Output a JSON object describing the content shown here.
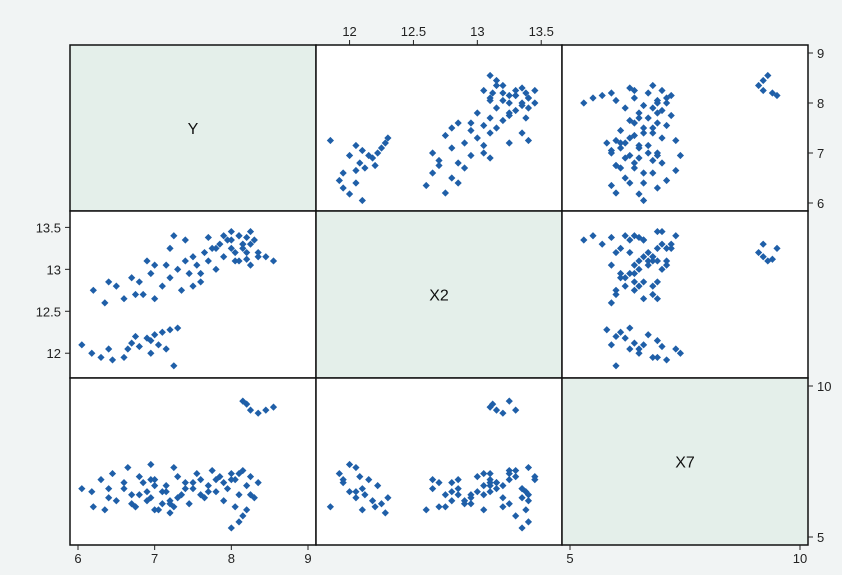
{
  "chart_data": {
    "type": "scatter",
    "variables": [
      "Y",
      "X2",
      "X7"
    ],
    "diagonal_labels": [
      "Y",
      "X2",
      "X7"
    ],
    "colors": {
      "marker": "#1f5fa8",
      "diagonal_fill": "#e4efea",
      "panel_bg": "#ffffff",
      "page_bg": "#f1f4f4"
    },
    "axes": {
      "Y": {
        "range": [
          6,
          9
        ],
        "ticks": [
          "6",
          "7",
          "8",
          "9"
        ],
        "tick_values": [
          6,
          7,
          8,
          9
        ]
      },
      "X2": {
        "range": [
          11.8,
          13.6
        ],
        "ticks": [
          "12",
          "12.5",
          "13",
          "13.5"
        ],
        "tick_values": [
          12,
          12.5,
          13,
          13.5
        ]
      },
      "X7": {
        "range": [
          5,
          10
        ],
        "ticks": [
          "5",
          "10"
        ],
        "tick_values": [
          5,
          10
        ]
      }
    },
    "tick_axes": {
      "top": {
        "variable": "X2",
        "column": 1
      },
      "right_row0": {
        "variable": "Y",
        "row": 0
      },
      "left_row1": {
        "variable": "X2",
        "row": 1
      },
      "right_row2": {
        "variable": "X7",
        "row": 2
      },
      "bottom_col0": {
        "variable": "Y",
        "column": 0,
        "ticks": [
          "6",
          "7",
          "8",
          "9"
        ]
      },
      "bottom_col2": {
        "variable": "X7",
        "column": 2,
        "ticks": [
          "5",
          "10"
        ]
      }
    },
    "observations": [
      {
        "Y": 6.05,
        "X2": 12.1,
        "X7": 6.6
      },
      {
        "Y": 6.18,
        "X2": 12.0,
        "X7": 6.5
      },
      {
        "Y": 6.3,
        "X2": 11.95,
        "X7": 6.9
      },
      {
        "Y": 6.4,
        "X2": 12.05,
        "X7": 6.3
      },
      {
        "Y": 6.45,
        "X2": 11.92,
        "X7": 7.1
      },
      {
        "Y": 6.6,
        "X2": 11.95,
        "X7": 6.8
      },
      {
        "Y": 6.65,
        "X2": 12.05,
        "X7": 7.3
      },
      {
        "Y": 6.7,
        "X2": 12.12,
        "X7": 6.4
      },
      {
        "Y": 6.8,
        "X2": 12.08,
        "X7": 7.0
      },
      {
        "Y": 6.9,
        "X2": 12.18,
        "X7": 6.2
      },
      {
        "Y": 6.95,
        "X2": 12.0,
        "X7": 7.4
      },
      {
        "Y": 7.0,
        "X2": 12.22,
        "X7": 6.7
      },
      {
        "Y": 7.05,
        "X2": 12.1,
        "X7": 5.9
      },
      {
        "Y": 7.1,
        "X2": 12.25,
        "X7": 6.1
      },
      {
        "Y": 7.15,
        "X2": 12.05,
        "X7": 6.5
      },
      {
        "Y": 6.95,
        "X2": 12.15,
        "X7": 6.9
      },
      {
        "Y": 7.2,
        "X2": 12.28,
        "X7": 5.8
      },
      {
        "Y": 7.25,
        "X2": 11.85,
        "X7": 6.0
      },
      {
        "Y": 7.3,
        "X2": 12.3,
        "X7": 6.3
      },
      {
        "Y": 6.75,
        "X2": 12.2,
        "X7": 6.0
      },
      {
        "Y": 6.2,
        "X2": 12.75,
        "X7": 6.0
      },
      {
        "Y": 6.35,
        "X2": 12.6,
        "X7": 5.9
      },
      {
        "Y": 6.5,
        "X2": 12.8,
        "X7": 6.2
      },
      {
        "Y": 6.6,
        "X2": 12.65,
        "X7": 6.6
      },
      {
        "Y": 6.7,
        "X2": 12.9,
        "X7": 6.1
      },
      {
        "Y": 6.8,
        "X2": 12.85,
        "X7": 6.4
      },
      {
        "Y": 6.85,
        "X2": 12.7,
        "X7": 6.8
      },
      {
        "Y": 6.95,
        "X2": 12.95,
        "X7": 6.3
      },
      {
        "Y": 7.0,
        "X2": 12.65,
        "X7": 6.9
      },
      {
        "Y": 7.1,
        "X2": 12.8,
        "X7": 6.5
      },
      {
        "Y": 7.15,
        "X2": 13.05,
        "X7": 6.7
      },
      {
        "Y": 7.2,
        "X2": 12.9,
        "X7": 6.2
      },
      {
        "Y": 7.3,
        "X2": 13.0,
        "X7": 7.0
      },
      {
        "Y": 7.35,
        "X2": 12.75,
        "X7": 6.4
      },
      {
        "Y": 7.4,
        "X2": 13.1,
        "X7": 6.8
      },
      {
        "Y": 7.45,
        "X2": 12.95,
        "X7": 6.1
      },
      {
        "Y": 7.5,
        "X2": 13.15,
        "X7": 6.6
      },
      {
        "Y": 7.55,
        "X2": 13.05,
        "X7": 7.1
      },
      {
        "Y": 7.6,
        "X2": 12.85,
        "X7": 6.9
      },
      {
        "Y": 7.65,
        "X2": 13.2,
        "X7": 6.3
      },
      {
        "Y": 7.7,
        "X2": 13.1,
        "X7": 6.7
      },
      {
        "Y": 7.75,
        "X2": 13.25,
        "X7": 7.2
      },
      {
        "Y": 7.8,
        "X2": 13.0,
        "X7": 6.5
      },
      {
        "Y": 7.85,
        "X2": 13.3,
        "X7": 7.0
      },
      {
        "Y": 7.9,
        "X2": 13.15,
        "X7": 6.8
      },
      {
        "Y": 7.95,
        "X2": 13.35,
        "X7": 6.6
      },
      {
        "Y": 8.0,
        "X2": 13.25,
        "X7": 7.1
      },
      {
        "Y": 8.05,
        "X2": 13.1,
        "X7": 6.9
      },
      {
        "Y": 8.1,
        "X2": 13.4,
        "X7": 6.4
      },
      {
        "Y": 8.15,
        "X2": 13.3,
        "X7": 7.2
      },
      {
        "Y": 8.2,
        "X2": 13.2,
        "X7": 6.7
      },
      {
        "Y": 8.25,
        "X2": 13.45,
        "X7": 7.0
      },
      {
        "Y": 8.3,
        "X2": 13.35,
        "X7": 6.3
      },
      {
        "Y": 8.35,
        "X2": 13.15,
        "X7": 6.8
      },
      {
        "Y": 7.0,
        "X2": 13.05,
        "X7": 5.9
      },
      {
        "Y": 7.2,
        "X2": 13.25,
        "X7": 6.1
      },
      {
        "Y": 7.6,
        "X2": 12.95,
        "X7": 6.4
      },
      {
        "Y": 7.9,
        "X2": 13.4,
        "X7": 6.2
      },
      {
        "Y": 8.05,
        "X2": 13.2,
        "X7": 6.0
      },
      {
        "Y": 7.4,
        "X2": 13.35,
        "X7": 6.6
      },
      {
        "Y": 6.9,
        "X2": 13.1,
        "X7": 6.5
      },
      {
        "Y": 7.8,
        "X2": 13.25,
        "X7": 6.9
      },
      {
        "Y": 8.1,
        "X2": 13.1,
        "X7": 7.1
      },
      {
        "Y": 7.5,
        "X2": 12.8,
        "X7": 6.8
      },
      {
        "Y": 6.4,
        "X2": 12.85,
        "X7": 6.6
      },
      {
        "Y": 7.7,
        "X2": 13.38,
        "X7": 6.5
      },
      {
        "Y": 8.25,
        "X2": 13.05,
        "X7": 6.4
      },
      {
        "Y": 7.25,
        "X2": 13.4,
        "X7": 7.3
      },
      {
        "Y": 6.75,
        "X2": 12.7,
        "X7": 6.0
      },
      {
        "Y": 8.0,
        "X2": 13.45,
        "X7": 6.9
      },
      {
        "Y": 8.0,
        "X2": 13.35,
        "X7": 5.3
      },
      {
        "Y": 8.1,
        "X2": 13.4,
        "X7": 5.5
      },
      {
        "Y": 8.15,
        "X2": 13.3,
        "X7": 5.7
      },
      {
        "Y": 8.2,
        "X2": 13.38,
        "X7": 5.9
      },
      {
        "Y": 8.15,
        "X2": 13.25,
        "X7": 9.5
      },
      {
        "Y": 8.25,
        "X2": 13.3,
        "X7": 9.2
      },
      {
        "Y": 8.35,
        "X2": 13.2,
        "X7": 9.1
      },
      {
        "Y": 8.45,
        "X2": 13.15,
        "X7": 9.2
      },
      {
        "Y": 8.55,
        "X2": 13.1,
        "X7": 9.3
      },
      {
        "Y": 8.2,
        "X2": 13.12,
        "X7": 9.4
      }
    ]
  }
}
